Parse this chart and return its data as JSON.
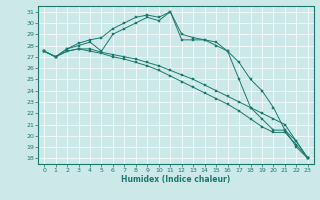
{
  "xlabel": "Humidex (Indice chaleur)",
  "bg_color": "#cde8e8",
  "grid_color": "#ffffff",
  "line_color": "#1a7a6e",
  "xlim": [
    -0.5,
    23.5
  ],
  "ylim": [
    17.5,
    31.5
  ],
  "yticks": [
    18,
    19,
    20,
    21,
    22,
    23,
    24,
    25,
    26,
    27,
    28,
    29,
    30,
    31
  ],
  "xticks": [
    0,
    1,
    2,
    3,
    4,
    5,
    6,
    7,
    8,
    9,
    10,
    11,
    12,
    13,
    14,
    15,
    16,
    17,
    18,
    19,
    20,
    21,
    22,
    23
  ],
  "series": [
    {
      "x": [
        0,
        1,
        2,
        3,
        4,
        5,
        6,
        7,
        8,
        9,
        10,
        11,
        12,
        13,
        14,
        15,
        16,
        17,
        18,
        19,
        20,
        21,
        22,
        23
      ],
      "y": [
        27.5,
        27.0,
        27.7,
        28.0,
        28.3,
        27.5,
        29.0,
        29.5,
        30.0,
        30.5,
        30.2,
        31.0,
        29.0,
        28.7,
        28.5,
        28.3,
        27.5,
        25.0,
        22.5,
        21.5,
        20.5,
        20.5,
        19.0,
        18.0
      ]
    },
    {
      "x": [
        0,
        1,
        2,
        3,
        4,
        5,
        6,
        7,
        8,
        9,
        10,
        11,
        12,
        13,
        14,
        15,
        16,
        17,
        18,
        19,
        20,
        21,
        22,
        23
      ],
      "y": [
        27.5,
        27.0,
        27.7,
        28.2,
        28.5,
        28.7,
        29.5,
        30.0,
        30.5,
        30.7,
        30.5,
        31.0,
        28.5,
        28.5,
        28.5,
        28.0,
        27.5,
        26.5,
        25.0,
        24.0,
        22.5,
        20.5,
        19.5,
        18.0
      ]
    },
    {
      "x": [
        0,
        1,
        2,
        3,
        4,
        5,
        6,
        7,
        8,
        9,
        10,
        11,
        12,
        13,
        14,
        15,
        16,
        17,
        18,
        19,
        20,
        21,
        22,
        23
      ],
      "y": [
        27.5,
        27.0,
        27.5,
        27.7,
        27.7,
        27.4,
        27.2,
        27.0,
        26.8,
        26.5,
        26.2,
        25.8,
        25.4,
        25.0,
        24.5,
        24.0,
        23.5,
        23.0,
        22.5,
        22.0,
        21.5,
        21.0,
        19.5,
        18.0
      ]
    },
    {
      "x": [
        0,
        1,
        2,
        3,
        4,
        5,
        6,
        7,
        8,
        9,
        10,
        11,
        12,
        13,
        14,
        15,
        16,
        17,
        18,
        19,
        20,
        21,
        22,
        23
      ],
      "y": [
        27.5,
        27.0,
        27.5,
        27.7,
        27.5,
        27.3,
        27.0,
        26.8,
        26.5,
        26.2,
        25.8,
        25.3,
        24.8,
        24.3,
        23.8,
        23.3,
        22.8,
        22.2,
        21.5,
        20.8,
        20.3,
        20.3,
        19.2,
        18.0
      ]
    }
  ]
}
